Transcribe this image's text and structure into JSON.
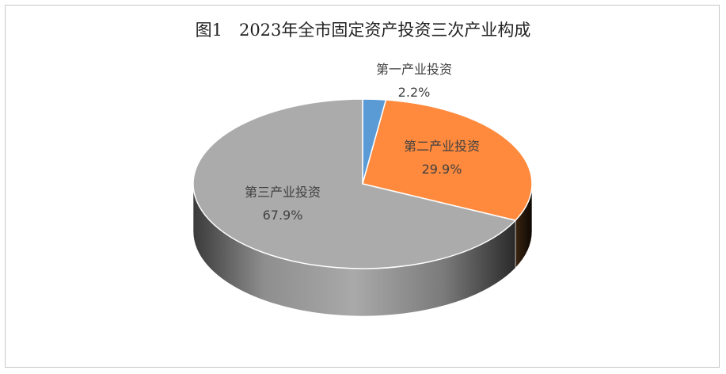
{
  "chart_data": {
    "type": "pie",
    "title": "图1　2023年全市固定资产投资三次产业构成",
    "slices": [
      {
        "label": "第一产业投资",
        "value": 2.2,
        "value_label": "2.2%",
        "color": "#5B9BD5"
      },
      {
        "label": "第二产业投资",
        "value": 29.9,
        "value_label": "29.9%",
        "color": "#FF8A3D"
      },
      {
        "label": "第三产业投资",
        "value": 67.9,
        "value_label": "67.9%",
        "color": "#ABABAB"
      }
    ],
    "legend": "none",
    "style": "3d"
  }
}
